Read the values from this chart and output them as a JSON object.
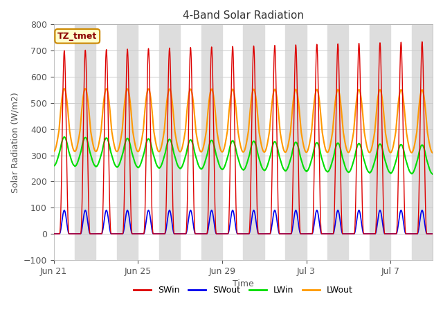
{
  "title": "4-Band Solar Radiation",
  "xlabel": "Time",
  "ylabel": "Solar Radiation (W/m2)",
  "ylim": [
    -100,
    800
  ],
  "yticks": [
    -100,
    0,
    100,
    200,
    300,
    400,
    500,
    600,
    700,
    800
  ],
  "num_days": 18,
  "points_per_day": 500,
  "colors": {
    "SWin": "#dd0000",
    "SWout": "#0000ee",
    "LWin": "#00dd00",
    "LWout": "#ff9900"
  },
  "annotation_label": "TZ_tmet",
  "annotation_color": "#8B0000",
  "annotation_facecolor": "#ffffcc",
  "annotation_edgecolor": "#cc8800",
  "bg_stripe_color": "#dddddd",
  "tick_positions": [
    0,
    4,
    8,
    12,
    16
  ],
  "tick_labels": [
    "Jun 21",
    "Jun 25",
    "Jun 29",
    "Jul 3",
    "Jul 7"
  ]
}
